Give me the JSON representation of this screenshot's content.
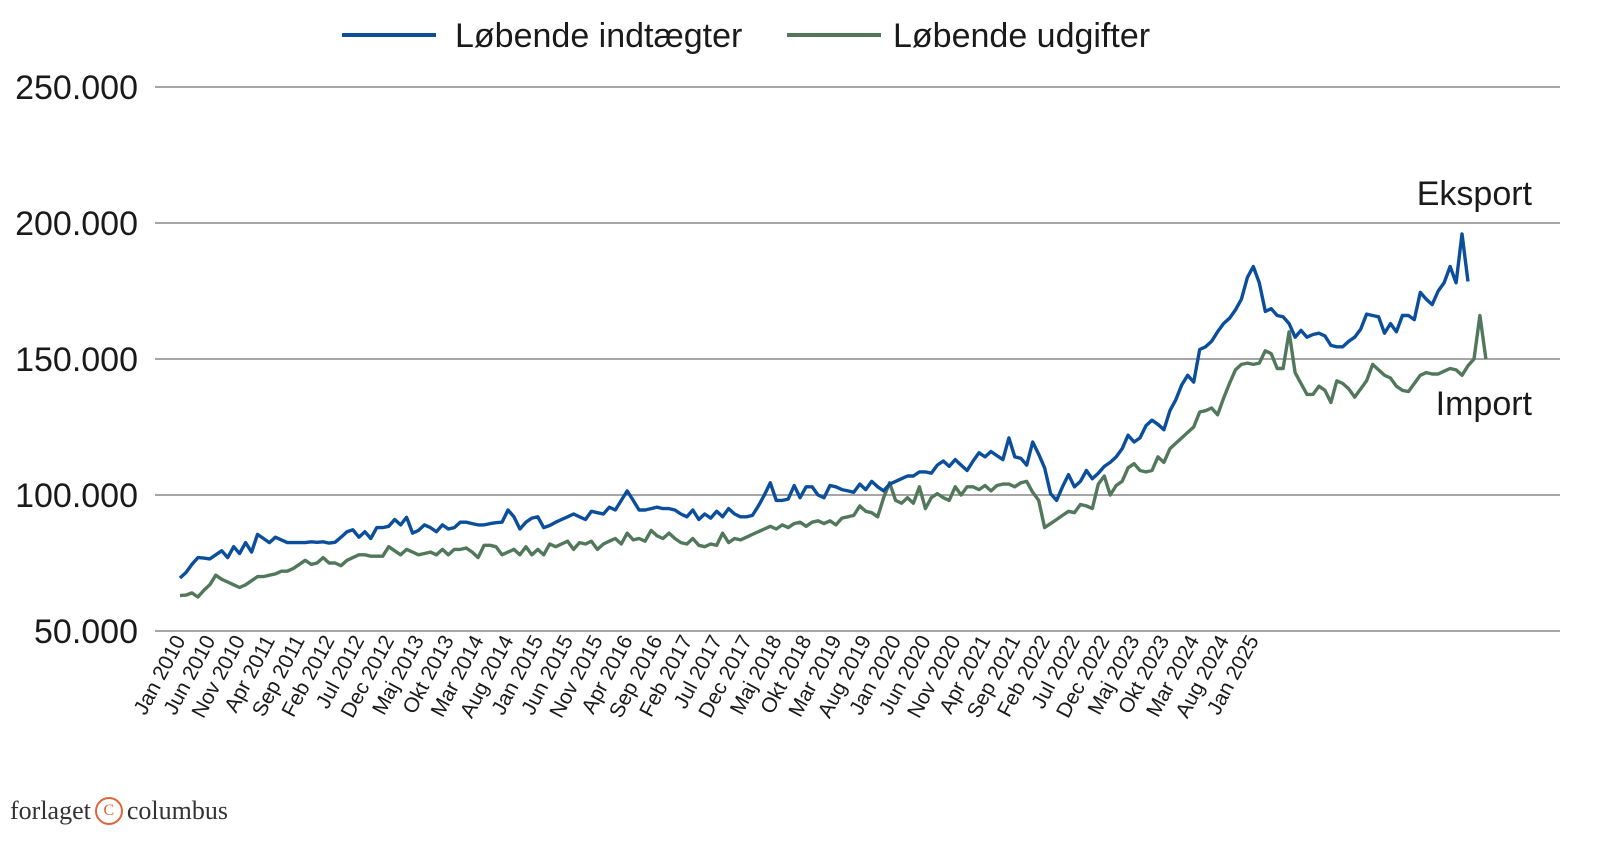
{
  "colors": {
    "export": "#0b4e9b",
    "import": "#52785b",
    "grid": "#9a9a9a"
  },
  "brand": {
    "left": "forlaget",
    "right": "columbus",
    "logo_glyph": "C"
  },
  "chart_data": {
    "type": "line",
    "title": "",
    "xlabel": "",
    "ylabel": "",
    "ylim": [
      50000,
      250000
    ],
    "yticks": [
      50000,
      100000,
      150000,
      200000,
      250000
    ],
    "ytick_labels": [
      "50.000",
      "100.000",
      "150.000",
      "200.000",
      "250.000"
    ],
    "grid": true,
    "legend_position": "top-center",
    "x_tick_labels": [
      "Jan 2010",
      "Jun 2010",
      "Nov 2010",
      "Apr 2011",
      "Sep 2011",
      "Feb 2012",
      "Jul 2012",
      "Dec 2012",
      "Maj 2013",
      "Okt 2013",
      "Mar 2014",
      "Aug 2014",
      "Jan 2015",
      "Jun 2015",
      "Nov 2015",
      "Apr 2016",
      "Sep 2016",
      "Feb 2017",
      "Jul 2017",
      "Dec 2017",
      "Maj 2018",
      "Okt 2018",
      "Mar 2019",
      "Aug 2019",
      "Jan 2020",
      "Jun 2020",
      "Nov 2020",
      "Apr 2021",
      "Sep 2021",
      "Feb 2022",
      "Jul 2022",
      "Dec 2022",
      "Maj 2023",
      "Okt 2023",
      "Mar 2024",
      "Aug 2024",
      "Jan 2025"
    ],
    "annotations": [
      {
        "text": "Eksport",
        "series": "export"
      },
      {
        "text": "Import",
        "series": "import"
      }
    ],
    "series": [
      {
        "id": "export",
        "name": "Løbende indtægter",
        "values": [
          69500,
          71500,
          74500,
          77000,
          76800,
          76500,
          78000,
          79500,
          77000,
          81000,
          78500,
          82500,
          79000,
          85500,
          84000,
          82500,
          84500,
          83500,
          82500,
          82500,
          82500,
          82500,
          82800,
          82600,
          82800,
          82300,
          82600,
          84500,
          86500,
          87200,
          84500,
          86500,
          84000,
          88000,
          88000,
          88500,
          91000,
          89000,
          91800,
          86000,
          87000,
          89000,
          88000,
          86500,
          89000,
          87500,
          88000,
          90000,
          90000,
          89500,
          89000,
          89000,
          89500,
          89800,
          90000,
          94500,
          92000,
          87500,
          90000,
          91500,
          92000,
          88000,
          88800,
          90000,
          91000,
          92000,
          93000,
          92000,
          91000,
          94000,
          93500,
          93000,
          95500,
          94500,
          98000,
          101500,
          98000,
          94500,
          94500,
          95000,
          95500,
          95000,
          95000,
          94500,
          93000,
          92000,
          94500,
          91000,
          93000,
          91500,
          94000,
          92000,
          95000,
          93000,
          92000,
          92000,
          92500,
          96000,
          100000,
          104500,
          98000,
          98000,
          98500,
          103500,
          99000,
          103000,
          103000,
          100000,
          99000,
          103500,
          103000,
          102000,
          101500,
          101000,
          104000,
          102000,
          105000,
          103000,
          101500,
          104000,
          105000,
          106000,
          107000,
          107000,
          108500,
          108500,
          108000,
          111000,
          112500,
          110500,
          113000,
          111000,
          109000,
          112500,
          115500,
          114000,
          116000,
          114500,
          113000,
          121000,
          114000,
          113500,
          111000,
          119500,
          115000,
          110000,
          100500,
          98000,
          103000,
          107500,
          103000,
          105000,
          109000,
          106000,
          108000,
          110500,
          112000,
          114000,
          117000,
          122000,
          119500,
          121000,
          125500,
          127500,
          126000,
          124000,
          131000,
          135000,
          140500,
          144000,
          141500,
          153500,
          154500,
          156500,
          160000,
          163000,
          165000,
          168000,
          172000,
          180000,
          184000,
          178000,
          167500,
          168500,
          166000,
          165500,
          163000,
          158000,
          160500,
          158000,
          159000,
          159500,
          158500,
          155000,
          154500,
          154500,
          156500,
          158000,
          161000,
          166500,
          166000,
          165500,
          159500,
          163000,
          160000,
          166000,
          166000,
          164500,
          174500,
          172000,
          170000,
          175000,
          178000,
          184000,
          178000,
          196000,
          178500
        ]
      },
      {
        "id": "import",
        "name": "Løbende udgifter",
        "values": [
          63000,
          63200,
          64000,
          62500,
          65000,
          67000,
          70500,
          69000,
          68000,
          67000,
          66000,
          67000,
          68500,
          70000,
          70000,
          70500,
          71000,
          72000,
          72000,
          73000,
          74500,
          76000,
          74500,
          75000,
          77000,
          75000,
          75000,
          74000,
          76000,
          77000,
          78000,
          78000,
          77500,
          77500,
          77500,
          81000,
          79500,
          78000,
          80000,
          79000,
          78000,
          78500,
          79000,
          78000,
          80000,
          78000,
          80000,
          80000,
          80500,
          79000,
          77000,
          81500,
          81500,
          81000,
          78000,
          79000,
          80000,
          78000,
          81000,
          78000,
          80000,
          78000,
          82000,
          81000,
          82000,
          83000,
          80000,
          82500,
          82000,
          83000,
          80000,
          82000,
          83000,
          84000,
          82000,
          86000,
          83500,
          84000,
          83000,
          87000,
          85000,
          84000,
          86000,
          84000,
          82500,
          82000,
          84000,
          81500,
          81000,
          82000,
          81500,
          86000,
          82500,
          84000,
          83500,
          84500,
          85500,
          86500,
          87500,
          88500,
          87500,
          89000,
          88000,
          89500,
          90000,
          88500,
          90000,
          90500,
          89500,
          90500,
          89000,
          91500,
          92000,
          92500,
          96000,
          94000,
          93500,
          92000,
          99000,
          104500,
          98000,
          97000,
          99000,
          97000,
          103000,
          95000,
          99000,
          100500,
          99000,
          98000,
          103000,
          100000,
          103000,
          103000,
          102000,
          103500,
          101500,
          103500,
          104000,
          104000,
          103000,
          104500,
          105000,
          101000,
          98000,
          88000,
          89500,
          91000,
          92500,
          94000,
          93500,
          96500,
          96000,
          95000,
          104000,
          107000,
          100000,
          103500,
          105000,
          110000,
          111500,
          109000,
          108500,
          109000,
          114000,
          112000,
          117000,
          119000,
          121000,
          123000,
          125000,
          130500,
          131000,
          132000,
          129500,
          135500,
          141000,
          146000,
          148000,
          148500,
          148000,
          148500,
          153000,
          152000,
          146500,
          146500,
          160000,
          145000,
          141000,
          137000,
          137000,
          140000,
          138500,
          134000,
          142000,
          141000,
          139000,
          136000,
          139000,
          142000,
          148000,
          146000,
          144000,
          143000,
          140000,
          138500,
          138000,
          141000,
          144000,
          145000,
          144500,
          144500,
          145500,
          146500,
          146000,
          144000,
          147500,
          150000,
          166000,
          150000
        ]
      }
    ]
  }
}
